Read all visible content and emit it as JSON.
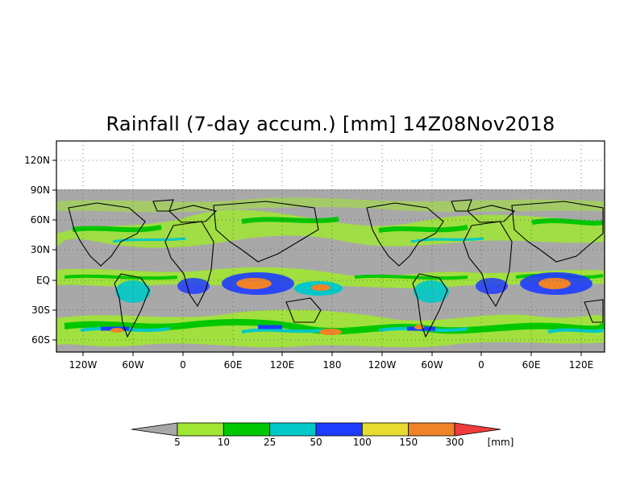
{
  "title": "Rainfall (7-day accum.) [mm] 14Z08Nov2018",
  "map": {
    "y_labels": [
      "120N",
      "90N",
      "60N",
      "30N",
      "EQ",
      "30S",
      "60S"
    ],
    "x_labels": [
      "120W",
      "60W",
      "0",
      "60E",
      "120E",
      "180",
      "120W",
      "60W",
      "0",
      "60E",
      "120E"
    ],
    "no_data_color": "#a8a8a8",
    "background_color": "#ffffff"
  },
  "colorbar": {
    "unit": "[mm]",
    "tick_labels": [
      "5",
      "10",
      "25",
      "50",
      "100",
      "150",
      "300"
    ],
    "colors": [
      "#a8a8a8",
      "#a0e632",
      "#00c800",
      "#00c8c8",
      "#1e3cff",
      "#e6dc32",
      "#f08228",
      "#f03c3c"
    ]
  }
}
